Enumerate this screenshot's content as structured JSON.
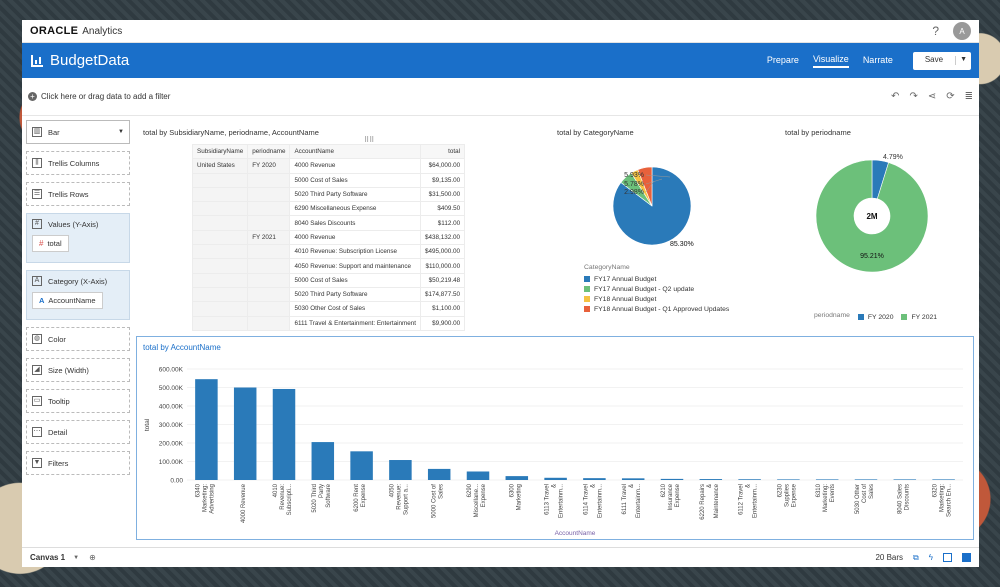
{
  "topbar": {
    "brand": "ORACLE",
    "brand_sub": "Analytics",
    "help": "?",
    "avatar": "A"
  },
  "header": {
    "title": "BudgetData",
    "nav": [
      "Prepare",
      "Visualize",
      "Narrate"
    ],
    "active": "Visualize",
    "save_label": "Save"
  },
  "filterbar": {
    "placeholder": "Click here or drag data to add a filter"
  },
  "sidebar": {
    "chart_type": "Bar",
    "trellis_columns": "Trellis Columns",
    "trellis_rows": "Trellis Rows",
    "values_label": "Values (Y-Axis)",
    "values_item": "total",
    "category_label": "Category (X-Axis)",
    "category_item": "AccountName",
    "color": "Color",
    "size": "Size (Width)",
    "tooltip": "Tooltip",
    "detail": "Detail",
    "filters": "Filters"
  },
  "pivot": {
    "title": "total by SubsidiaryName, periodname, AccountName",
    "headers": [
      "SubsidiaryName",
      "periodname",
      "AccountName",
      "total"
    ],
    "rows": [
      [
        "United States",
        "FY 2020",
        "4000 Revenue",
        "$64,000.00"
      ],
      [
        "",
        "",
        "5000 Cost of Sales",
        "$9,135.00"
      ],
      [
        "",
        "",
        "5020 Third Party Software",
        "$31,500.00"
      ],
      [
        "",
        "",
        "6290 Miscellaneous Expense",
        "$409.50"
      ],
      [
        "",
        "",
        "8040 Sales Discounts",
        "$112.00"
      ],
      [
        "",
        "FY 2021",
        "4000 Revenue",
        "$438,132.00"
      ],
      [
        "",
        "",
        "4010 Revenue: Subscription License",
        "$495,000.00"
      ],
      [
        "",
        "",
        "4050 Revenue: Support and maintenance",
        "$110,000.00"
      ],
      [
        "",
        "",
        "5000 Cost of Sales",
        "$50,219.48"
      ],
      [
        "",
        "",
        "5020 Third Party Software",
        "$174,877.50"
      ],
      [
        "",
        "",
        "5030 Other Cost of Sales",
        "$1,100.00"
      ],
      [
        "",
        "",
        "6111 Travel & Entertainment: Entertainment",
        "$9,900.00"
      ]
    ]
  },
  "pie1": {
    "title": "total by CategoryName",
    "legend_title": "CategoryName",
    "labels": [
      "5.93%",
      "5.78%",
      "2.98%",
      "85.30%"
    ]
  },
  "pie2": {
    "title": "total by periodname",
    "center": "2M",
    "labels": [
      "4.79%",
      "95.21%"
    ],
    "legend_title": "periodname"
  },
  "bar": {
    "title": "total by AccountName",
    "xlabel": "AccountName",
    "ylabel": "total"
  },
  "bottombar": {
    "canvas": "Canvas 1",
    "count": "20 Bars"
  },
  "chart_data": [
    {
      "type": "pie",
      "title": "total by CategoryName",
      "categories": [
        "FY17 Annual Budget",
        "FY17 Annual Budget - Q2 update",
        "FY18 Annual Budget",
        "FY18 Annual Budget - Q1 Approved Updates"
      ],
      "values": [
        85.3,
        5.78,
        2.98,
        5.93
      ],
      "colors": [
        "#2a7ab9",
        "#6cc07a",
        "#f5c242",
        "#e8613b"
      ],
      "legend": "bottom"
    },
    {
      "type": "pie",
      "title": "total by periodname",
      "categories": [
        "FY 2020",
        "FY 2021"
      ],
      "values": [
        4.79,
        95.21
      ],
      "colors": [
        "#2a7ab9",
        "#6cc07a"
      ],
      "legend": "bottom"
    },
    {
      "type": "bar",
      "title": "total by AccountName",
      "xlabel": "AccountName",
      "ylabel": "total",
      "ylim": [
        0,
        600000
      ],
      "yticks": [
        "0.00",
        "100.00K",
        "200.00K",
        "300.00K",
        "400.00K",
        "500.00K",
        "600.00K"
      ],
      "color": "#2a7ab9",
      "categories": [
        "6340 Marketing: Advertising",
        "4000 Revenue",
        "4010 Revenue: Subscripti...",
        "5020 Third Party Software",
        "6200 Rent Expense",
        "4050 Revenue: Support a...",
        "5000 Cost of Sales",
        "6290 Miscellane... Expense",
        "6300 Marketing",
        "6113 Travel & Entertainm...",
        "6114 Travel & Entertainm...",
        "6111 Travel & Entertainm...",
        "6210 Insurance Expense",
        "6220 Repairs & Maintenance",
        "6112 Travel & Entertainm...",
        "6230 Supplies Expense",
        "6310 Marketing: Events",
        "5030 Other Cost of Sales",
        "8040 Sales Discounts",
        "6320 Marketing: Search En..."
      ],
      "values": [
        545000,
        500000,
        492000,
        205000,
        155000,
        108000,
        60000,
        46000,
        21000,
        12000,
        10000,
        9000,
        6000,
        5000,
        4000,
        2500,
        2000,
        1100,
        112,
        100
      ]
    }
  ]
}
